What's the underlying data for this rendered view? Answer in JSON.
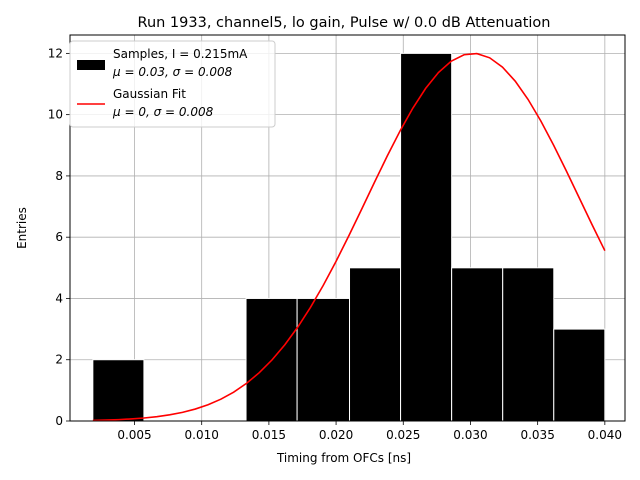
{
  "chart_data": {
    "type": "bar",
    "title": "Run 1933, channel5, lo gain, Pulse w/ 0.0 dB Attenuation",
    "xlabel": "Timing from OFCs [ns]",
    "ylabel": "Entries",
    "xlim": [
      0.0002,
      0.0415
    ],
    "ylim": [
      0,
      12.6
    ],
    "grid": true,
    "legend_position": "top-left",
    "xticks": [
      0.005,
      0.01,
      0.015,
      0.02,
      0.025,
      0.03,
      0.035,
      0.04
    ],
    "xtick_labels": [
      "0.005",
      "0.010",
      "0.015",
      "0.020",
      "0.025",
      "0.030",
      "0.035",
      "0.040"
    ],
    "yticks": [
      0,
      2,
      4,
      6,
      8,
      10,
      12
    ],
    "ytick_labels": [
      "0",
      "2",
      "4",
      "6",
      "8",
      "10",
      "12"
    ],
    "histogram": {
      "name": "Samples, I = 0.215mA",
      "stats_label": "μ = 0.03, σ = 0.008",
      "color": "#000000",
      "edge_color": "#ffffff",
      "bins": [
        {
          "x0": 0.0019,
          "x1": 0.0057,
          "count": 2
        },
        {
          "x0": 0.0057,
          "x1": 0.0095,
          "count": 0
        },
        {
          "x0": 0.0095,
          "x1": 0.0133,
          "count": 0
        },
        {
          "x0": 0.0133,
          "x1": 0.0171,
          "count": 4
        },
        {
          "x0": 0.0171,
          "x1": 0.021,
          "count": 4
        },
        {
          "x0": 0.021,
          "x1": 0.0248,
          "count": 5
        },
        {
          "x0": 0.0248,
          "x1": 0.0286,
          "count": 12
        },
        {
          "x0": 0.0286,
          "x1": 0.0324,
          "count": 5
        },
        {
          "x0": 0.0324,
          "x1": 0.0362,
          "count": 5
        },
        {
          "x0": 0.0362,
          "x1": 0.04,
          "count": 3
        }
      ]
    },
    "fit": {
      "name": "Gaussian Fit",
      "stats_label": "μ = 0, σ = 0.008",
      "color": "#ff0000",
      "amplitude": 12,
      "mean": 0.0302,
      "sigma": 0.0079,
      "x_range": [
        0.0019,
        0.04
      ]
    }
  }
}
